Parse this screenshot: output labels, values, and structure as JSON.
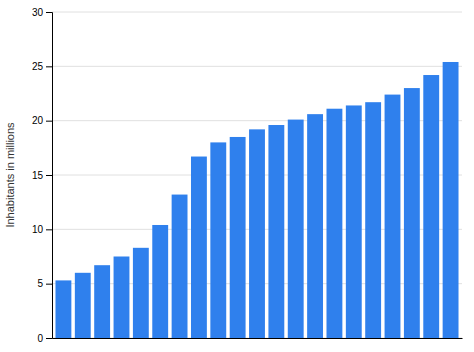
{
  "chart_data": {
    "type": "bar",
    "ylabel": "Inhabitants in millions",
    "categories": [
      null,
      null,
      null,
      null,
      null,
      null,
      null,
      null,
      null,
      null,
      null,
      null,
      null,
      null,
      null,
      null,
      null,
      null,
      null,
      null,
      null
    ],
    "values": [
      5.3,
      6.0,
      6.7,
      7.5,
      8.3,
      10.4,
      13.2,
      16.7,
      18.0,
      18.5,
      19.2,
      19.6,
      20.1,
      20.6,
      21.1,
      21.4,
      21.7,
      22.4,
      23.0,
      24.2,
      25.4
    ],
    "color": "#2f80ed",
    "ylim": [
      0,
      30
    ],
    "yticks": [
      0,
      5,
      10,
      15,
      20,
      25,
      30
    ],
    "grid": true,
    "tick_labels": "y"
  }
}
